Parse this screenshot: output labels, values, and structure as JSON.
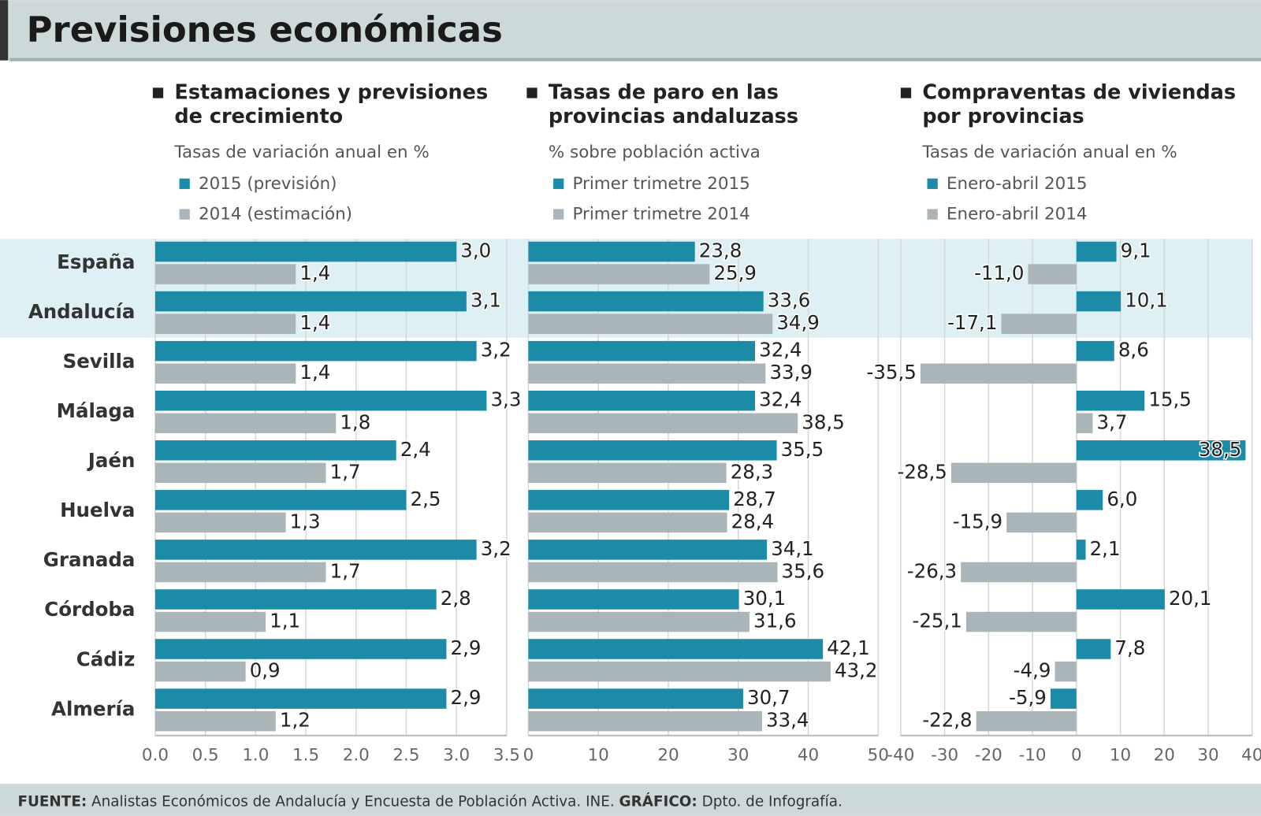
{
  "title": "Previsiones económicas",
  "chart_data": [
    {
      "type": "bar",
      "orientation": "horizontal",
      "title": [
        "Estamaciones y previsiones",
        "de crecimiento"
      ],
      "subtitle": "Tasas de variación anual en %",
      "categories": [
        "España",
        "Andalucía",
        "Sevilla",
        "Málaga",
        "Jaén",
        "Huelva",
        "Granada",
        "Córdoba",
        "Cádiz",
        "Almería"
      ],
      "series": [
        {
          "name": "2015 (previsión)",
          "color": "#1b8ba8",
          "values": [
            3.0,
            3.1,
            3.2,
            3.3,
            2.4,
            2.5,
            3.2,
            2.8,
            2.9,
            2.9
          ],
          "value_labels": [
            "3,0",
            "3,1",
            "3,2",
            "3,3",
            "2,4",
            "2,5",
            "3,2",
            "2,8",
            "2,9",
            "2,9"
          ]
        },
        {
          "name": "2014 (estimación)",
          "color": "#a9b5b8",
          "values": [
            1.4,
            1.4,
            1.4,
            1.8,
            1.7,
            1.3,
            1.7,
            1.1,
            0.9,
            1.2
          ],
          "value_labels": [
            "1,4",
            "1,4",
            "1,4",
            "1,8",
            "1,7",
            "1,3",
            "1,7",
            "1,1",
            "0,9",
            "1,2"
          ]
        }
      ],
      "xlim": [
        0,
        3.5
      ],
      "xticks": [
        {
          "value": 0,
          "label": "0.0"
        },
        0.5,
        {
          "value": 1,
          "label": "1.0"
        },
        1.5,
        {
          "value": 2,
          "label": "2.0"
        },
        2.5,
        {
          "value": 3,
          "label": "3.0"
        },
        3.5
      ],
      "grid": true
    },
    {
      "type": "bar",
      "orientation": "horizontal",
      "title": [
        "Tasas de paro en las",
        "provincias andaluzass"
      ],
      "subtitle": "% sobre población activa",
      "series": [
        {
          "name": "Primer trimetre 2015",
          "color": "#1b8ba8",
          "values": [
            23.8,
            33.6,
            32.4,
            32.4,
            35.5,
            28.7,
            34.1,
            30.1,
            42.1,
            30.7
          ],
          "value_labels": [
            "23,8",
            "33,6",
            "32,4",
            "32,4",
            "35,5",
            "28,7",
            "34,1",
            "30,1",
            "42,1",
            "30,7"
          ]
        },
        {
          "name": "Primer trimetre 2014",
          "color": "#a9b5b8",
          "values": [
            25.9,
            34.9,
            33.9,
            38.5,
            28.3,
            28.4,
            35.6,
            31.6,
            43.2,
            33.4
          ],
          "value_labels": [
            "25,9",
            "34,9",
            "33,9",
            "38,5",
            "28,3",
            "28,4",
            "35,6",
            "31,6",
            "43,2",
            "33,4"
          ]
        }
      ],
      "xlim": [
        0,
        50
      ],
      "xticks": [
        0,
        10,
        20,
        30,
        40,
        50
      ],
      "grid": true
    },
    {
      "type": "bar",
      "orientation": "horizontal",
      "title": [
        "Compraventas de viviendas",
        "por provincias"
      ],
      "subtitle": "Tasas de variación anual en %",
      "series": [
        {
          "name": "Enero-abril 2015",
          "color": "#1b8ba8",
          "values": [
            9.1,
            10.1,
            8.6,
            15.5,
            38.5,
            6.0,
            2.1,
            20.1,
            7.8,
            -5.9
          ],
          "value_labels": [
            "9,1",
            "10,1",
            "8,6",
            "15,5",
            "38,5",
            "6,0",
            "2,1",
            "20,1",
            "7,8",
            "-5,9"
          ]
        },
        {
          "name": "Enero-abril 2014",
          "color": "#a9b5b8",
          "values": [
            -11.0,
            -17.1,
            -35.5,
            3.7,
            -28.5,
            -15.9,
            -26.3,
            -25.1,
            -4.9,
            -22.8
          ],
          "value_labels": [
            "-11,0",
            "-17,1",
            "-35,5",
            "3,7",
            "-28,5",
            "-15,9",
            "-26,3",
            "-25,1",
            "-4,9",
            "-22,8"
          ]
        }
      ],
      "xlim": [
        -40,
        40
      ],
      "xticks": [
        -40,
        -30,
        -20,
        -10,
        0,
        10,
        20,
        30,
        40
      ],
      "grid": true
    }
  ],
  "footer": {
    "source_label": "FUENTE:",
    "source": "Analistas Económicos de Andalucía y Encuesta de Población Activa. INE.",
    "credit_label": "GRÁFICO:",
    "credit": "Dpto. de Infografía."
  }
}
